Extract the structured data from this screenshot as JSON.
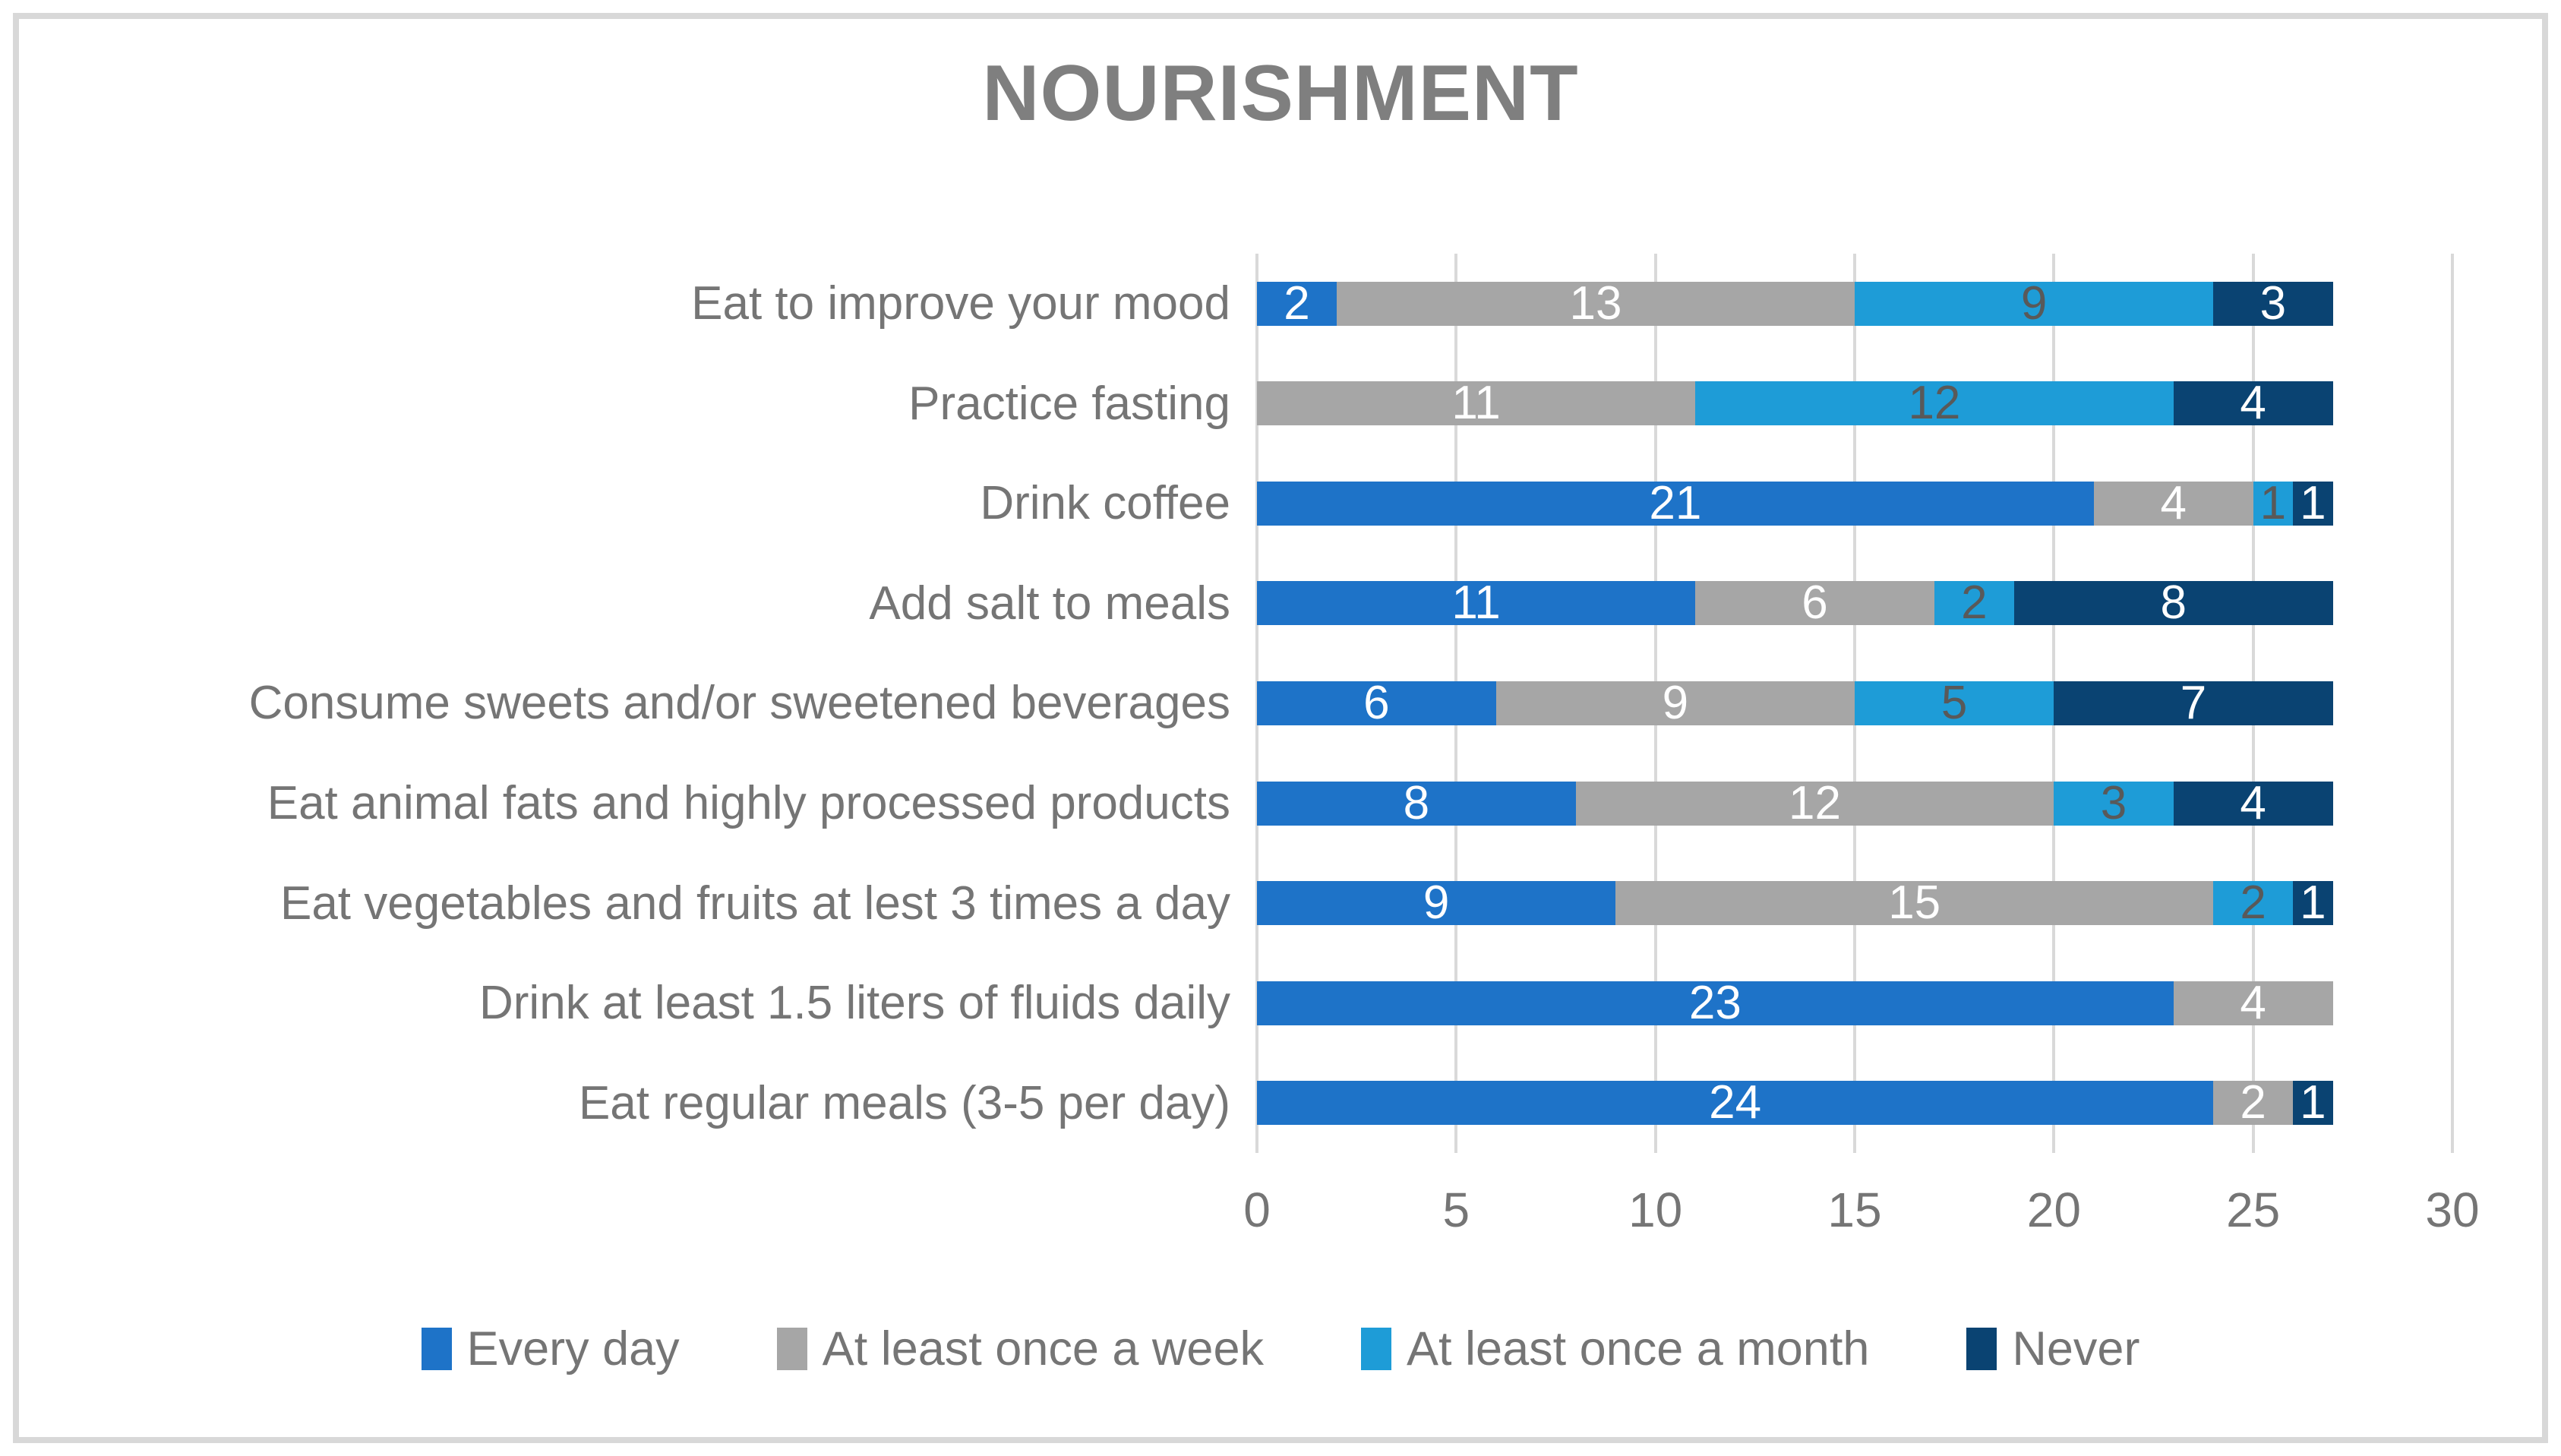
{
  "chart_data": {
    "type": "bar",
    "orientation": "horizontal",
    "stacked": true,
    "title": "NOURISHMENT",
    "categories": [
      "Eat to improve your mood",
      "Practice fasting",
      "Drink coffee",
      "Add salt to meals",
      "Consume sweets and/or sweetened beverages",
      "Eat animal fats and highly processed products",
      "Eat vegetables and fruits at lest 3 times a day",
      "Drink at least 1.5 liters of fluids daily",
      "Eat regular meals (3-5 per day)"
    ],
    "series": [
      {
        "name": "Every day",
        "color": "#1E73C8",
        "label_color": "#FFFFFF",
        "values": [
          2,
          0,
          21,
          11,
          6,
          8,
          9,
          23,
          24
        ]
      },
      {
        "name": "At least once a week",
        "color": "#A6A6A6",
        "label_color": "#FFFFFF",
        "values": [
          13,
          11,
          4,
          6,
          9,
          12,
          15,
          4,
          2
        ]
      },
      {
        "name": "At least once a month",
        "color": "#1E9CD7",
        "label_color": "#595959",
        "values": [
          9,
          12,
          1,
          2,
          5,
          3,
          2,
          0,
          0
        ]
      },
      {
        "name": "Never",
        "color": "#0A4372",
        "label_color": "#FFFFFF",
        "values": [
          3,
          4,
          1,
          8,
          7,
          4,
          1,
          0,
          1
        ]
      }
    ],
    "x_ticks": [
      0,
      5,
      10,
      15,
      20,
      25,
      30
    ],
    "xlim": [
      0,
      30
    ],
    "grid": true,
    "grid_color": "#D9D9D9",
    "border_color": "#D8D8D8",
    "title_color": "#7F7F7F",
    "axis_text_color": "#757575",
    "legend_position": "bottom",
    "bar_labels": true
  }
}
